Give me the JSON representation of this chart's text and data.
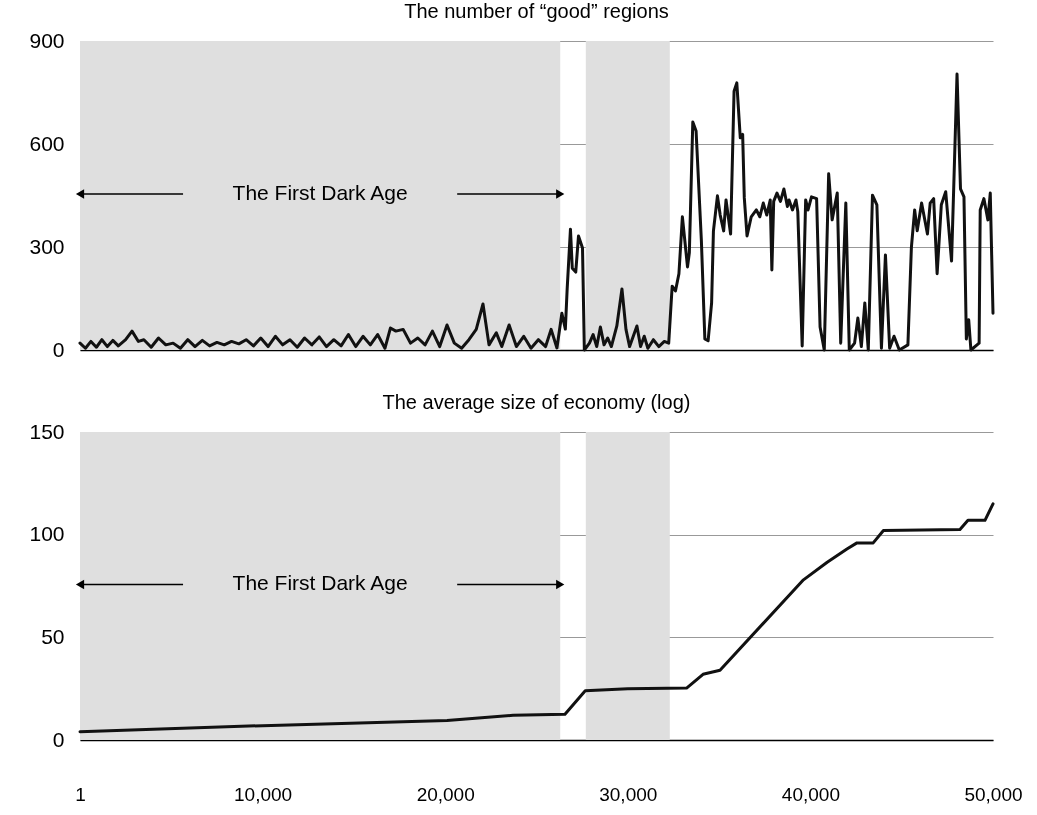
{
  "chart_data": [
    {
      "type": "line",
      "title": "The number of “good” regions",
      "xlim": [
        1,
        50000
      ],
      "ylim": [
        0,
        900
      ],
      "yticks": [
        0,
        300,
        600,
        900
      ],
      "grid": "y",
      "tick_labels": "y",
      "bands": [
        {
          "axis": "x",
          "from": 1,
          "to": 26300,
          "color": "#dfdfdf"
        },
        {
          "axis": "x",
          "from": 27700,
          "to": 32300,
          "color": "#dfdfdf"
        }
      ],
      "annotations": [
        "The First Dark Age"
      ],
      "series": [
        {
          "color": "#111111",
          "x": [
            1,
            300,
            600,
            900,
            1200,
            1500,
            1800,
            2100,
            2500,
            2850,
            3200,
            3500,
            3900,
            4300,
            4700,
            5100,
            5500,
            5900,
            6300,
            6700,
            7100,
            7500,
            7900,
            8300,
            8700,
            9100,
            9500,
            9900,
            10300,
            10700,
            11100,
            11500,
            11900,
            12300,
            12700,
            13100,
            13500,
            13900,
            14300,
            14700,
            15100,
            15500,
            15900,
            16300,
            16700,
            17000,
            17300,
            17700,
            18100,
            18500,
            18900,
            19300,
            19700,
            20100,
            20500,
            20900,
            21300,
            21700,
            22070,
            22400,
            22800,
            23100,
            23500,
            23900,
            24300,
            24700,
            25100,
            25500,
            25800,
            26120,
            26390,
            26580,
            26680,
            26860,
            26960,
            27150,
            27300,
            27520,
            27620,
            27900,
            28100,
            28300,
            28500,
            28700,
            28900,
            29100,
            29400,
            29680,
            29900,
            30100,
            30300,
            30500,
            30700,
            30900,
            31100,
            31400,
            31700,
            32000,
            32240,
            32430,
            32610,
            32800,
            32990,
            33270,
            33370,
            33560,
            33740,
            34030,
            34220,
            34400,
            34590,
            34690,
            34910,
            35060,
            35250,
            35380,
            35630,
            35820,
            35970,
            36160,
            36290,
            36380,
            36530,
            36760,
            37040,
            37230,
            37420,
            37610,
            37800,
            37890,
            37990,
            38170,
            38360,
            38550,
            38740,
            38830,
            39020,
            39210,
            39310,
            39550,
            39740,
            39870,
            40060,
            40340,
            40530,
            40760,
            41000,
            41190,
            41470,
            41660,
            41940,
            42130,
            42420,
            42600,
            42790,
            42980,
            43170,
            43400,
            43640,
            43890,
            44110,
            44340,
            44580,
            44870,
            45340,
            45530,
            45710,
            45850,
            46090,
            46410,
            46560,
            46750,
            46940,
            47170,
            47410,
            47730,
            47840,
            48030,
            48220,
            48410,
            48540,
            48670,
            48790,
            49240,
            49300,
            49500,
            49720,
            49850,
            50000
          ],
          "values": [
            20,
            5,
            25,
            8,
            30,
            10,
            28,
            12,
            30,
            55,
            25,
            30,
            8,
            35,
            15,
            20,
            5,
            30,
            10,
            28,
            12,
            22,
            15,
            25,
            18,
            30,
            12,
            35,
            10,
            40,
            15,
            30,
            8,
            35,
            15,
            38,
            10,
            30,
            12,
            45,
            10,
            40,
            15,
            45,
            5,
            64,
            55,
            60,
            20,
            35,
            15,
            55,
            10,
            73,
            20,
            5,
            30,
            60,
            134,
            15,
            50,
            10,
            73,
            10,
            40,
            5,
            30,
            10,
            60,
            6,
            107,
            61,
            178,
            352,
            238,
            227,
            332,
            297,
            0,
            20,
            45,
            10,
            67,
            15,
            35,
            10,
            70,
            178,
            60,
            10,
            40,
            70,
            10,
            40,
            5,
            30,
            10,
            25,
            20,
            186,
            172,
            222,
            388,
            242,
            283,
            664,
            638,
            318,
            32,
            27,
            137,
            347,
            449,
            393,
            347,
            437,
            338,
            754,
            778,
            618,
            628,
            443,
            332,
            388,
            408,
            388,
            428,
            393,
            437,
            233,
            433,
            457,
            433,
            469,
            418,
            437,
            408,
            437,
            403,
            12,
            437,
            408,
            446,
            441,
            67,
            0,
            513,
            379,
            457,
            20,
            428,
            0,
            20,
            93,
            10,
            137,
            0,
            451,
            423,
            5,
            277,
            5,
            40,
            0,
            15,
            298,
            408,
            347,
            428,
            338,
            428,
            441,
            222,
            423,
            461,
            259,
            457,
            804,
            469,
            446,
            32,
            88,
            0,
            20,
            408,
            441,
            379,
            457,
            107
          ]
        }
      ]
    },
    {
      "type": "line",
      "title": "The average size of economy (log)",
      "xlim": [
        1,
        50000
      ],
      "xticks": [
        1,
        {
          "value": 10000,
          "label": "10,000"
        },
        {
          "value": 20000,
          "label": "20,000"
        },
        {
          "value": 30000,
          "label": "30,000"
        },
        {
          "value": 40000,
          "label": "40,000"
        },
        {
          "value": 50000,
          "label": "50,000"
        }
      ],
      "ylim": [
        0,
        150
      ],
      "yticks": [
        0,
        50,
        100,
        150
      ],
      "grid": "y",
      "bands": [
        {
          "axis": "x",
          "from": 1,
          "to": 26300,
          "color": "#dfdfdf"
        },
        {
          "axis": "x",
          "from": 27700,
          "to": 32300,
          "color": "#dfdfdf"
        }
      ],
      "annotations": [
        "The First Dark Age"
      ],
      "series": [
        {
          "color": "#111111",
          "x": [
            1,
            10000,
            20100,
            23720,
            26560,
            27670,
            30000,
            33220,
            34120,
            35050,
            39620,
            40920,
            42000,
            42550,
            43440,
            44000,
            48190,
            48630,
            49560,
            50000
          ],
          "values": [
            4,
            7,
            9.5,
            12,
            12.5,
            24,
            25,
            25.3,
            32,
            34,
            78,
            86.6,
            93,
            96,
            96,
            102,
            102.5,
            107,
            107,
            115
          ]
        }
      ]
    }
  ]
}
